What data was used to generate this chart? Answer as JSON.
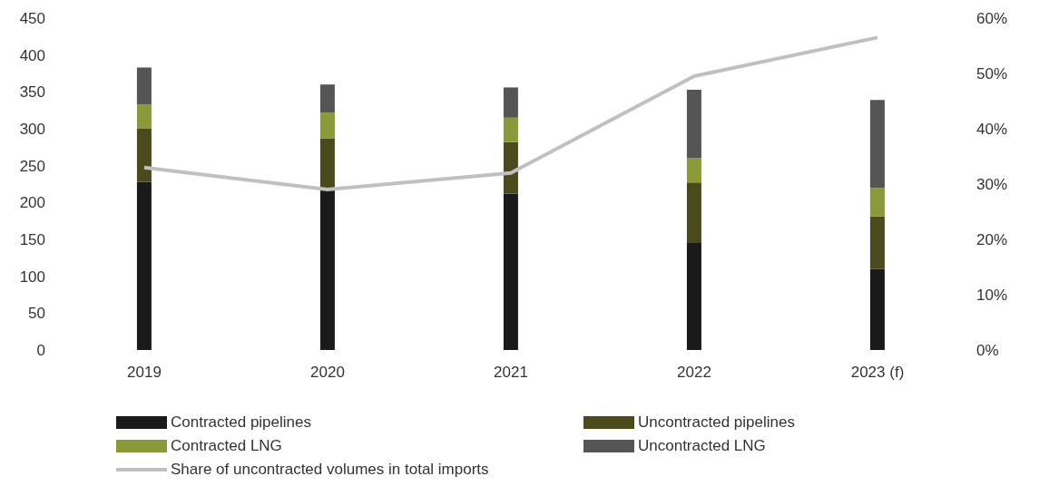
{
  "chart_data": {
    "type": "bar",
    "stacked": true,
    "categories": [
      "2019",
      "2020",
      "2021",
      "2022",
      "2023 (f)"
    ],
    "series": [
      {
        "name": "Contracted pipelines",
        "color": "#1a1a1a",
        "values": [
          228,
          220,
          212,
          145,
          110
        ]
      },
      {
        "name": "Uncontracted pipelines",
        "color": "#4a4a1c",
        "values": [
          72,
          67,
          70,
          82,
          71
        ]
      },
      {
        "name": "Contracted LNG",
        "color": "#8a9a3a",
        "values": [
          33,
          35,
          33,
          33,
          39
        ]
      },
      {
        "name": "Uncontracted LNG",
        "color": "#555555",
        "values": [
          50,
          38,
          41,
          93,
          119
        ]
      },
      {
        "name": "Share of uncontracted volumes in total imports",
        "type": "line",
        "axis": "y2",
        "color": "#c0c0c0",
        "values": [
          33,
          29,
          32,
          49.5,
          56.5
        ]
      }
    ],
    "ylim": [
      0,
      450
    ],
    "yticks": [
      0,
      50,
      100,
      150,
      200,
      250,
      300,
      350,
      400,
      450
    ],
    "y2lim": [
      0,
      60
    ],
    "y2ticks": [
      {
        "value": 0,
        "label": "0%"
      },
      {
        "value": 10,
        "label": "10%"
      },
      {
        "value": 20,
        "label": "20%"
      },
      {
        "value": 30,
        "label": "30%"
      },
      {
        "value": 40,
        "label": "40%"
      },
      {
        "value": 50,
        "label": "50%"
      },
      {
        "value": 60,
        "label": "60%"
      }
    ],
    "grid": false,
    "legend": "bottom",
    "marker": "none",
    "line_style": "solid"
  }
}
